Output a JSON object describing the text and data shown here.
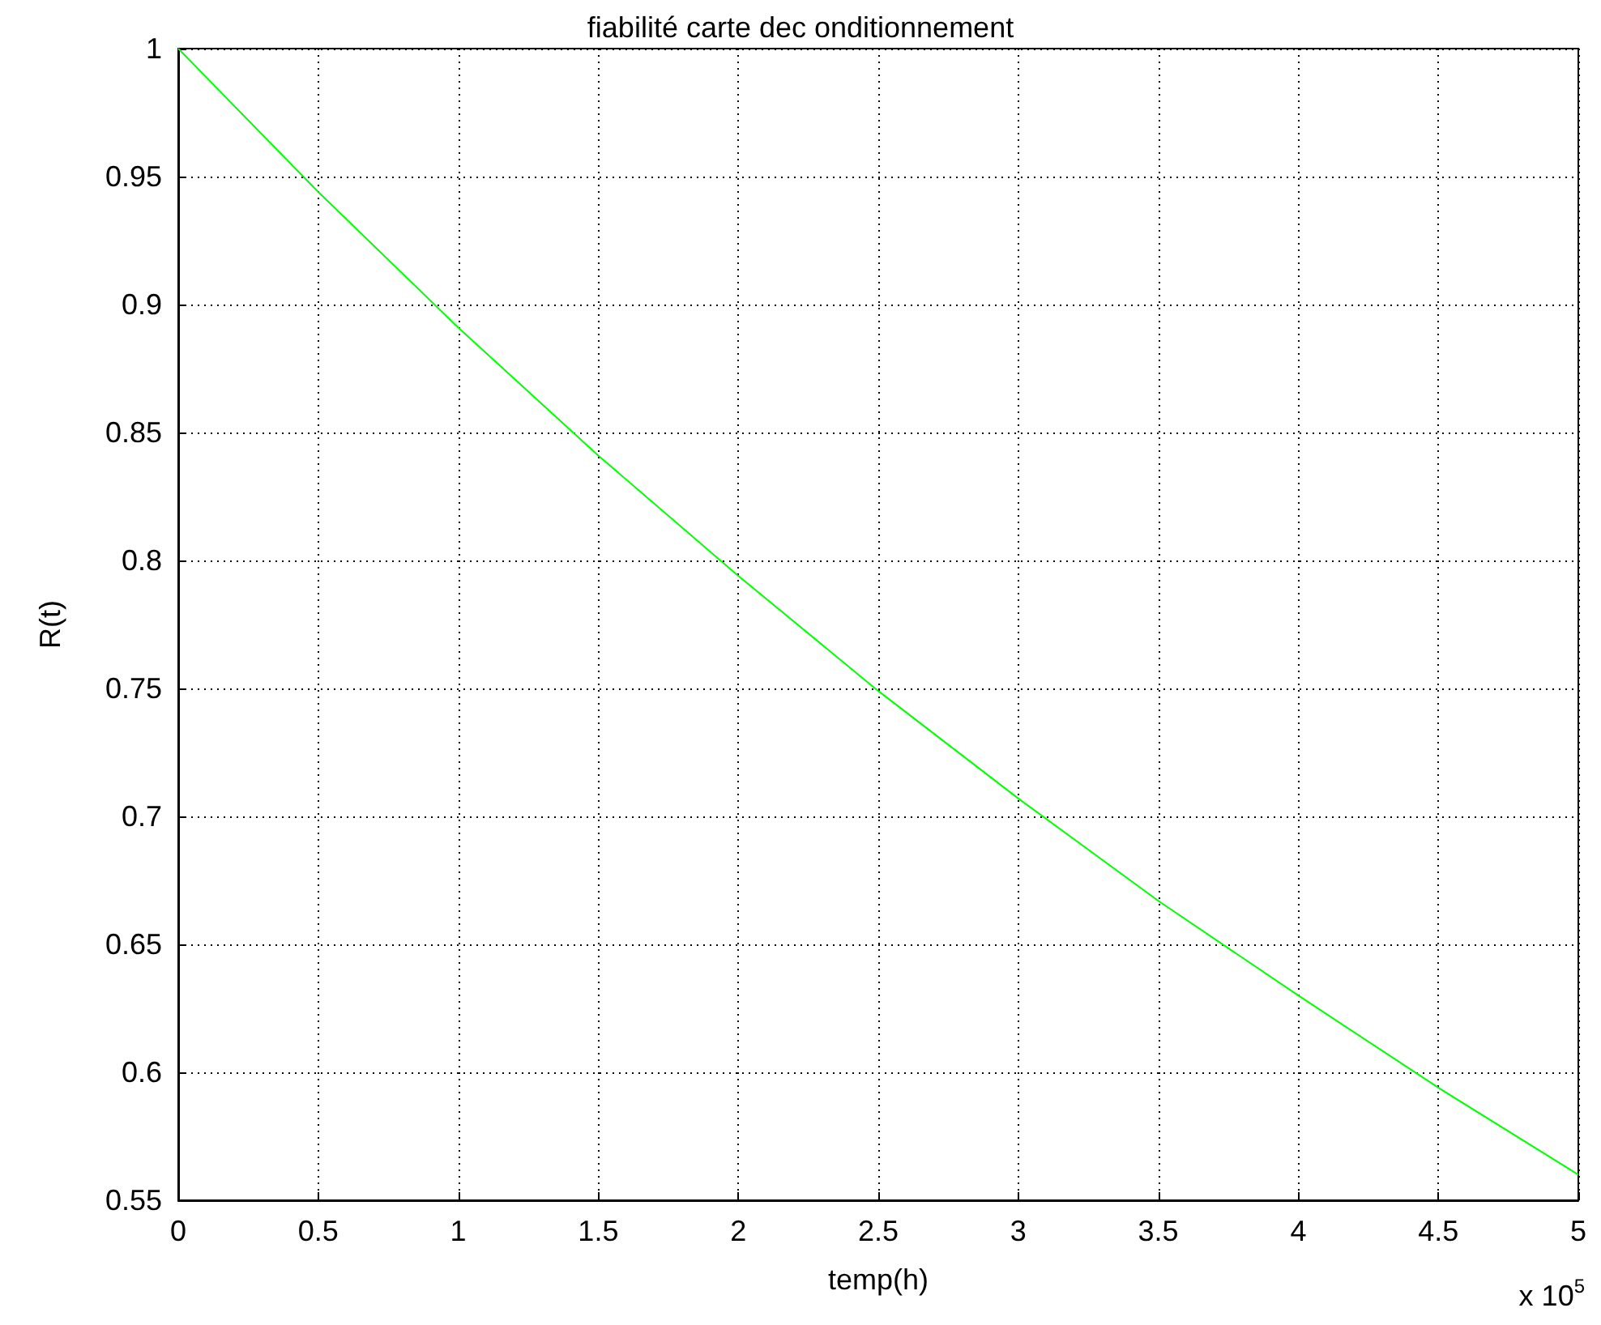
{
  "chart_data": {
    "type": "line",
    "title": "fiabilité carte dec onditionnement",
    "xlabel": "temp(h)",
    "ylabel": "R(t)",
    "annotations": [
      "x 10$^{5}$"
    ],
    "x": [
      0,
      0.5,
      1,
      1.5,
      2,
      2.5,
      3,
      3.5,
      4,
      4.5,
      5
    ],
    "series": [
      {
        "color": "#00ff00",
        "values": [
          1,
          0.944,
          0.891,
          0.841,
          0.794,
          0.749,
          0.707,
          0.667,
          0.63,
          0.594,
          0.56
        ]
      }
    ],
    "xlim": [
      0,
      5
    ],
    "xticks": [
      0,
      0.5,
      1,
      1.5,
      2,
      2.5,
      3,
      3.5,
      4,
      4.5,
      5
    ],
    "ylim": [
      0.55,
      1
    ],
    "yticks": [
      0.55,
      0.6,
      0.65,
      0.7,
      0.75,
      0.8,
      0.85,
      0.9,
      0.95,
      1
    ],
    "grid": true,
    "marker": "none",
    "line_style": "solid"
  }
}
